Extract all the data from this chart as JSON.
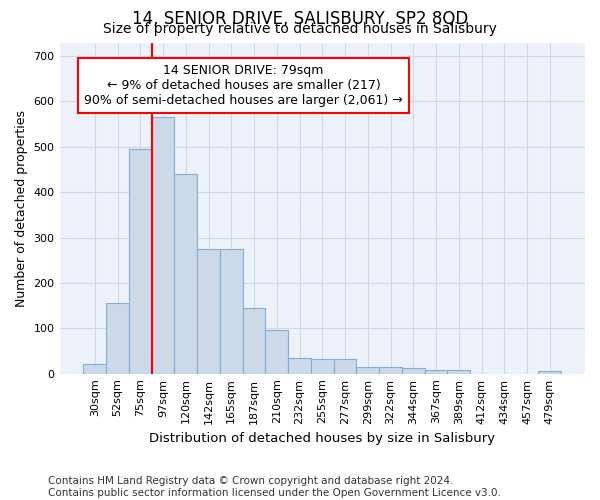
{
  "title": "14, SENIOR DRIVE, SALISBURY, SP2 8QD",
  "subtitle": "Size of property relative to detached houses in Salisbury",
  "xlabel": "Distribution of detached houses by size in Salisbury",
  "ylabel": "Number of detached properties",
  "footer_line1": "Contains HM Land Registry data © Crown copyright and database right 2024.",
  "footer_line2": "Contains public sector information licensed under the Open Government Licence v3.0.",
  "categories": [
    "30sqm",
    "52sqm",
    "75sqm",
    "97sqm",
    "120sqm",
    "142sqm",
    "165sqm",
    "187sqm",
    "210sqm",
    "232sqm",
    "255sqm",
    "277sqm",
    "299sqm",
    "322sqm",
    "344sqm",
    "367sqm",
    "389sqm",
    "412sqm",
    "434sqm",
    "457sqm",
    "479sqm"
  ],
  "values": [
    22,
    155,
    495,
    565,
    440,
    275,
    275,
    145,
    97,
    35,
    33,
    32,
    15,
    15,
    12,
    8,
    8,
    0,
    0,
    0,
    7
  ],
  "bar_color": "#ccd9e8",
  "bar_edge_color": "#7fafd4",
  "annotation_box_text": "14 SENIOR DRIVE: 79sqm\n← 9% of detached houses are smaller (217)\n90% of semi-detached houses are larger (2,061) →",
  "annotation_box_color": "white",
  "annotation_box_edge_color": "red",
  "vline_color": "red",
  "vline_x_index": 2,
  "ylim": [
    0,
    730
  ],
  "yticks": [
    0,
    100,
    200,
    300,
    400,
    500,
    600,
    700
  ],
  "bg_color": "#edf1fa",
  "grid_color": "#d0d8e8",
  "title_fontsize": 12,
  "subtitle_fontsize": 10,
  "xlabel_fontsize": 9.5,
  "ylabel_fontsize": 9,
  "tick_fontsize": 8,
  "footer_fontsize": 7.5,
  "annotation_fontsize": 9
}
